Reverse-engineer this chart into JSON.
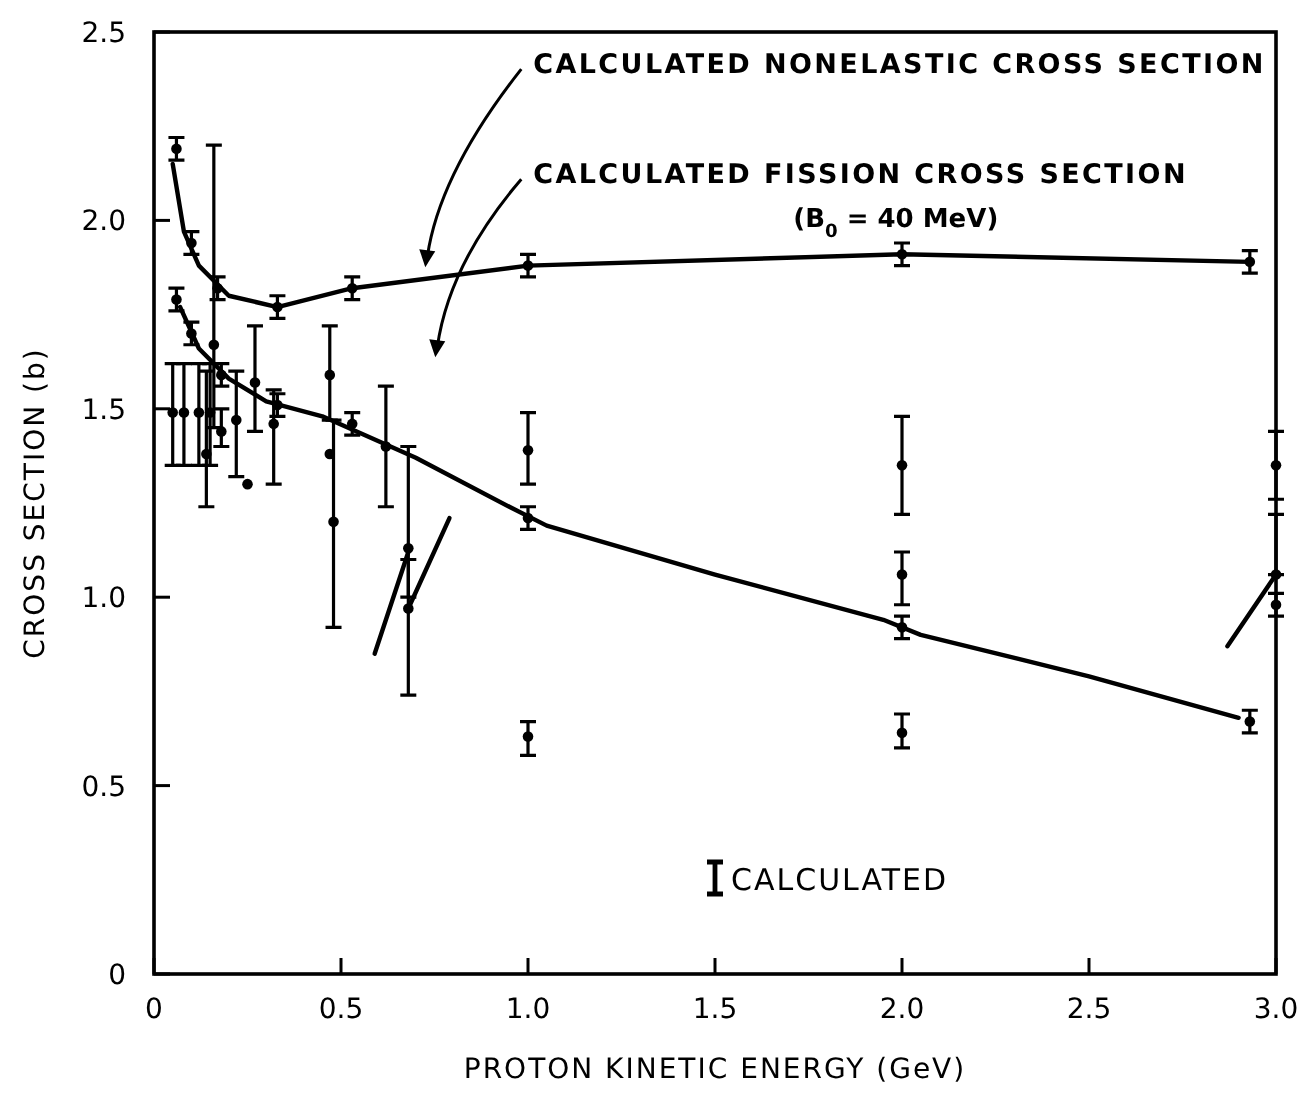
{
  "chart_data": {
    "type": "scatter",
    "xlabel": "PROTON KINETIC ENERGY (GeV)",
    "ylabel": "CROSS SECTION (b)",
    "xlim": [
      0,
      3
    ],
    "ylim": [
      0,
      2.5
    ],
    "xticks": [
      0,
      0.5,
      {
        "value": 1,
        "label": "1.0"
      },
      1.5,
      {
        "value": 2,
        "label": "2.0"
      },
      2.5,
      {
        "value": 3,
        "label": "3.0"
      }
    ],
    "yticks": [
      0,
      0.5,
      {
        "value": 1,
        "label": "1.0"
      },
      1.5,
      {
        "value": 2,
        "label": "2.0"
      },
      2.5
    ],
    "grid": false,
    "legend": "bottom",
    "annotations": [
      {
        "text": "CALCULATED NONELASTIC CROSS SECTION",
        "x": 0.72,
        "y": 1.86
      },
      "CALCULATED FISSION CROSS SECTION",
      "(B$_{0}$ = 40 MeV)"
    ],
    "series": [
      {
        "type": "line",
        "color": "#000000",
        "x": [
          0.05,
          0.08,
          0.12,
          0.2,
          0.33,
          0.53,
          1.0,
          2.0,
          2.93
        ],
        "values": [
          2.15,
          1.97,
          1.88,
          1.8,
          1.77,
          1.82,
          1.88,
          1.91,
          1.89
        ]
      },
      {
        "type": "line",
        "color": "#000000",
        "x": [
          0.07,
          0.12,
          0.2,
          0.3,
          0.45,
          0.7,
          0.95,
          1.05,
          1.5,
          1.95,
          2.05,
          2.5,
          2.9
        ],
        "values": [
          1.77,
          1.66,
          1.58,
          1.52,
          1.48,
          1.37,
          1.24,
          1.19,
          1.06,
          0.94,
          0.9,
          0.79,
          0.68
        ]
      },
      {
        "type": "line",
        "color": "#000000",
        "x": [
          0.59,
          0.68
        ],
        "values": [
          0.85,
          1.12
        ]
      },
      {
        "type": "line",
        "color": "#000000",
        "x": [
          0.68,
          0.79
        ],
        "values": [
          0.97,
          1.21
        ]
      },
      {
        "type": "line",
        "color": "#000000",
        "x": [
          2.87,
          3.0
        ],
        "values": [
          0.87,
          1.06
        ]
      },
      {
        "type": "scatter",
        "name": "CALCULATED",
        "color": "#000000",
        "marker": "circle",
        "x": [
          0.06,
          0.1,
          0.17,
          0.33,
          0.53,
          1.0,
          2.0,
          2.93,
          0.06,
          0.1,
          0.18,
          0.33,
          0.53,
          1.0,
          2.0,
          2.93
        ],
        "values": [
          2.19,
          1.94,
          1.82,
          1.77,
          1.82,
          1.88,
          1.91,
          1.89,
          1.79,
          1.7,
          1.59,
          1.51,
          1.46,
          1.21,
          0.92,
          0.67
        ],
        "errors": [
          0.03,
          0.03,
          0.03,
          0.03,
          0.03,
          0.03,
          0.03,
          0.03,
          0.03,
          0.03,
          0.03,
          0.03,
          0.03,
          0.03,
          0.03,
          0.03
        ]
      },
      {
        "color": "#000000",
        "marker": "circle",
        "x": [
          0.05,
          0.08,
          0.12,
          0.15,
          0.14,
          0.16,
          0.18,
          0.22,
          0.25,
          0.27,
          0.32,
          0.47,
          0.47,
          0.48,
          0.62,
          0.68,
          0.68,
          1.0,
          1.0,
          2.0,
          2.0,
          2.0,
          3.0,
          3.0,
          3.0
        ],
        "values": [
          1.49,
          1.49,
          1.49,
          1.49,
          1.38,
          1.67,
          1.44,
          1.47,
          1.3,
          1.57,
          1.46,
          1.59,
          1.38,
          1.2,
          1.4,
          1.13,
          0.97,
          1.39,
          0.63,
          1.35,
          1.06,
          0.64,
          1.35,
          1.06,
          0.98
        ],
        "errors": [
          [
            1.35,
            1.62
          ],
          [
            1.35,
            1.62
          ],
          [
            1.35,
            1.62
          ],
          [
            1.35,
            1.62
          ],
          [
            1.24,
            1.6
          ],
          [
            1.45,
            2.2
          ],
          [
            1.4,
            1.5
          ],
          [
            1.32,
            1.6
          ],
          null,
          [
            1.44,
            1.72
          ],
          [
            1.3,
            1.55
          ],
          [
            1.47,
            1.72
          ],
          null,
          [
            0.92,
            1.47
          ],
          [
            1.24,
            1.56
          ],
          [
            1.0,
            1.4
          ],
          [
            0.74,
            1.1
          ],
          [
            1.3,
            1.49
          ],
          [
            0.58,
            0.67
          ],
          [
            1.22,
            1.48
          ],
          [
            0.98,
            1.12
          ],
          [
            0.6,
            0.69
          ],
          [
            1.26,
            1.44
          ],
          [
            1.06,
            1.22
          ],
          [
            0.95,
            1.01
          ]
        ]
      }
    ]
  }
}
